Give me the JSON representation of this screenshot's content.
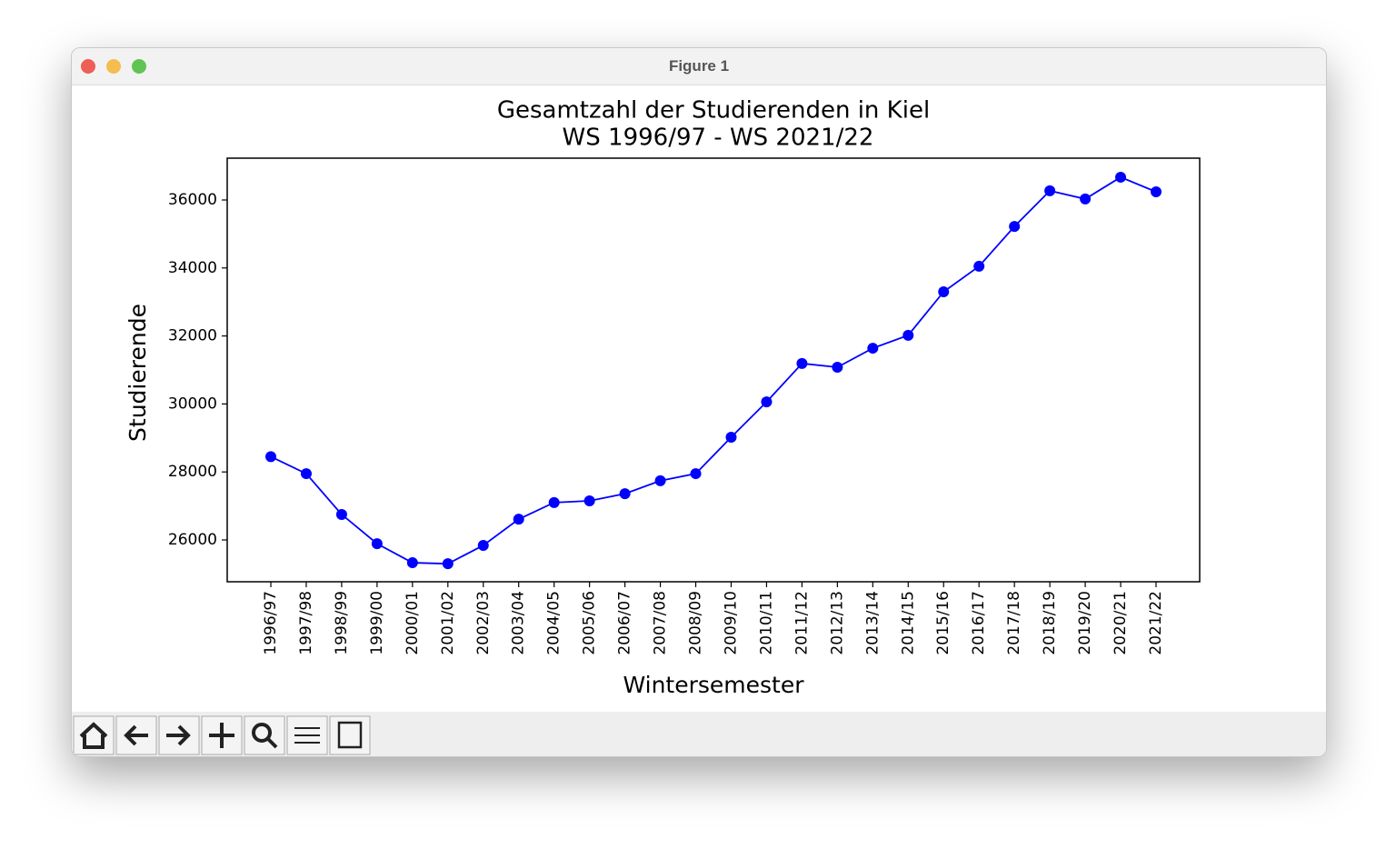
{
  "window": {
    "title": "Figure 1"
  },
  "chart_data": {
    "type": "line",
    "title": "Gesamtzahl der Studierenden in Kiel",
    "subtitle": "WS 1996/97 - WS 2021/22",
    "x_label": "Wintersemester",
    "y_label": "Studierende",
    "categories": [
      "1996/97",
      "1997/98",
      "1998/99",
      "1999/00",
      "2000/01",
      "2001/02",
      "2002/03",
      "2003/04",
      "2004/05",
      "2005/06",
      "2006/07",
      "2007/08",
      "2008/09",
      "2009/10",
      "2010/11",
      "2011/12",
      "2012/13",
      "2013/14",
      "2014/15",
      "2015/16",
      "2016/17",
      "2017/18",
      "2018/19",
      "2019/20",
      "2020/21",
      "2021/22"
    ],
    "series": [
      {
        "color": "#0000ff",
        "values": [
          28450,
          27950,
          26750,
          25890,
          25330,
          25300,
          25840,
          26610,
          27100,
          27150,
          27360,
          27740,
          27950,
          29020,
          30060,
          31190,
          31080,
          31640,
          32020,
          33300,
          34050,
          35220,
          36270,
          36030,
          36670,
          36240
        ]
      }
    ],
    "ylim": [
      24770,
      37230
    ],
    "yticks": [
      26000,
      28000,
      30000,
      32000,
      34000,
      36000
    ],
    "grid": false
  }
}
